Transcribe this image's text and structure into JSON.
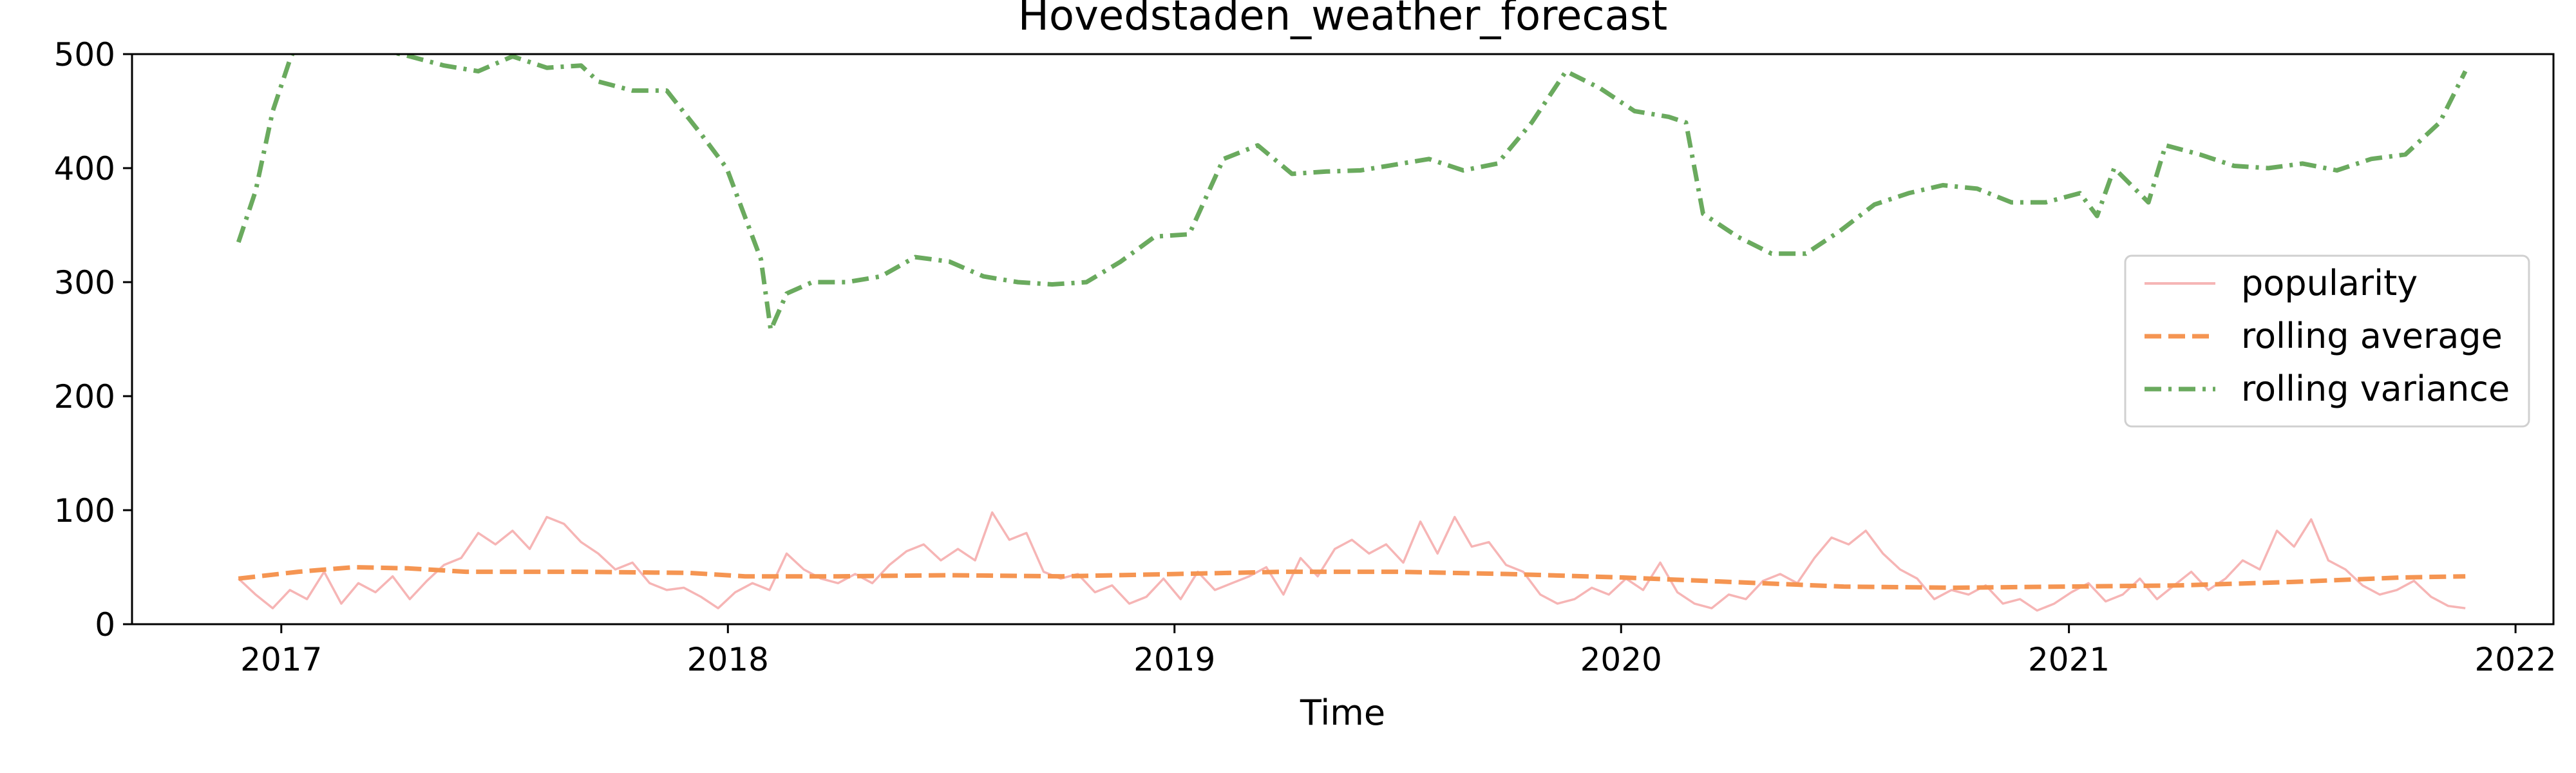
{
  "chart_data": {
    "type": "line",
    "title": "Hovedstaden_weather_forecast",
    "xlabel": "Time",
    "ylabel": "",
    "ylim": [
      0,
      500
    ],
    "xlim": [
      "2016-09-01",
      "2022-02-01"
    ],
    "x_ticks": [
      "2017",
      "2018",
      "2019",
      "2020",
      "2021",
      "2022"
    ],
    "y_ticks": [
      "0",
      "100",
      "200",
      "300",
      "400",
      "500"
    ],
    "grid": false,
    "legend_position": "center-right",
    "series": [
      {
        "name": "popularity",
        "color": "#f4a8a8",
        "style": "solid",
        "points": [
          [
            "2016-11-27",
            40
          ],
          [
            "2016-12-11",
            26
          ],
          [
            "2016-12-25",
            14
          ],
          [
            "2017-01-08",
            30
          ],
          [
            "2017-01-22",
            22
          ],
          [
            "2017-02-05",
            46
          ],
          [
            "2017-02-19",
            18
          ],
          [
            "2017-03-05",
            36
          ],
          [
            "2017-03-19",
            28
          ],
          [
            "2017-04-02",
            42
          ],
          [
            "2017-04-16",
            22
          ],
          [
            "2017-04-30",
            38
          ],
          [
            "2017-05-14",
            52
          ],
          [
            "2017-05-28",
            58
          ],
          [
            "2017-06-11",
            80
          ],
          [
            "2017-06-25",
            70
          ],
          [
            "2017-07-09",
            82
          ],
          [
            "2017-07-23",
            66
          ],
          [
            "2017-08-06",
            94
          ],
          [
            "2017-08-20",
            88
          ],
          [
            "2017-09-03",
            72
          ],
          [
            "2017-09-17",
            62
          ],
          [
            "2017-10-01",
            48
          ],
          [
            "2017-10-15",
            54
          ],
          [
            "2017-10-29",
            36
          ],
          [
            "2017-11-12",
            30
          ],
          [
            "2017-11-26",
            32
          ],
          [
            "2017-12-10",
            24
          ],
          [
            "2017-12-24",
            14
          ],
          [
            "2018-01-07",
            28
          ],
          [
            "2018-01-21",
            36
          ],
          [
            "2018-02-04",
            30
          ],
          [
            "2018-02-18",
            62
          ],
          [
            "2018-03-04",
            48
          ],
          [
            "2018-03-18",
            40
          ],
          [
            "2018-04-01",
            36
          ],
          [
            "2018-04-15",
            44
          ],
          [
            "2018-04-29",
            36
          ],
          [
            "2018-05-13",
            52
          ],
          [
            "2018-05-27",
            64
          ],
          [
            "2018-06-10",
            70
          ],
          [
            "2018-06-24",
            56
          ],
          [
            "2018-07-08",
            66
          ],
          [
            "2018-07-22",
            56
          ],
          [
            "2018-08-05",
            98
          ],
          [
            "2018-08-19",
            74
          ],
          [
            "2018-09-02",
            80
          ],
          [
            "2018-09-16",
            46
          ],
          [
            "2018-09-30",
            40
          ],
          [
            "2018-10-14",
            44
          ],
          [
            "2018-10-28",
            28
          ],
          [
            "2018-11-11",
            34
          ],
          [
            "2018-11-25",
            18
          ],
          [
            "2018-12-09",
            24
          ],
          [
            "2018-12-23",
            40
          ],
          [
            "2019-01-06",
            22
          ],
          [
            "2019-01-20",
            46
          ],
          [
            "2019-02-03",
            30
          ],
          [
            "2019-02-17",
            36
          ],
          [
            "2019-03-03",
            42
          ],
          [
            "2019-03-17",
            50
          ],
          [
            "2019-03-31",
            26
          ],
          [
            "2019-04-14",
            58
          ],
          [
            "2019-04-28",
            42
          ],
          [
            "2019-05-12",
            66
          ],
          [
            "2019-05-26",
            74
          ],
          [
            "2019-06-09",
            62
          ],
          [
            "2019-06-23",
            70
          ],
          [
            "2019-07-07",
            54
          ],
          [
            "2019-07-21",
            90
          ],
          [
            "2019-08-04",
            62
          ],
          [
            "2019-08-18",
            94
          ],
          [
            "2019-09-01",
            68
          ],
          [
            "2019-09-15",
            72
          ],
          [
            "2019-09-29",
            52
          ],
          [
            "2019-10-13",
            46
          ],
          [
            "2019-10-27",
            26
          ],
          [
            "2019-11-10",
            18
          ],
          [
            "2019-11-24",
            22
          ],
          [
            "2019-12-08",
            32
          ],
          [
            "2019-12-22",
            26
          ],
          [
            "2020-01-05",
            40
          ],
          [
            "2020-01-19",
            30
          ],
          [
            "2020-02-02",
            54
          ],
          [
            "2020-02-16",
            28
          ],
          [
            "2020-03-01",
            18
          ],
          [
            "2020-03-15",
            14
          ],
          [
            "2020-03-29",
            26
          ],
          [
            "2020-04-12",
            22
          ],
          [
            "2020-04-26",
            38
          ],
          [
            "2020-05-10",
            44
          ],
          [
            "2020-05-24",
            36
          ],
          [
            "2020-06-07",
            58
          ],
          [
            "2020-06-21",
            76
          ],
          [
            "2020-07-05",
            70
          ],
          [
            "2020-07-19",
            82
          ],
          [
            "2020-08-02",
            62
          ],
          [
            "2020-08-16",
            48
          ],
          [
            "2020-08-30",
            40
          ],
          [
            "2020-09-13",
            22
          ],
          [
            "2020-09-27",
            30
          ],
          [
            "2020-10-11",
            26
          ],
          [
            "2020-10-25",
            34
          ],
          [
            "2020-11-08",
            18
          ],
          [
            "2020-11-22",
            22
          ],
          [
            "2020-12-06",
            12
          ],
          [
            "2020-12-20",
            18
          ],
          [
            "2021-01-03",
            28
          ],
          [
            "2021-01-17",
            36
          ],
          [
            "2021-01-31",
            20
          ],
          [
            "2021-02-14",
            26
          ],
          [
            "2021-02-28",
            40
          ],
          [
            "2021-03-14",
            22
          ],
          [
            "2021-03-28",
            34
          ],
          [
            "2021-04-11",
            46
          ],
          [
            "2021-04-25",
            30
          ],
          [
            "2021-05-09",
            40
          ],
          [
            "2021-05-23",
            56
          ],
          [
            "2021-06-06",
            48
          ],
          [
            "2021-06-20",
            82
          ],
          [
            "2021-07-04",
            68
          ],
          [
            "2021-07-18",
            92
          ],
          [
            "2021-08-01",
            56
          ],
          [
            "2021-08-15",
            48
          ],
          [
            "2021-08-29",
            34
          ],
          [
            "2021-09-12",
            26
          ],
          [
            "2021-09-26",
            30
          ],
          [
            "2021-10-10",
            38
          ],
          [
            "2021-10-24",
            24
          ],
          [
            "2021-11-07",
            16
          ],
          [
            "2021-11-21",
            14
          ]
        ]
      },
      {
        "name": "rolling average",
        "color": "#f59552",
        "style": "dashed",
        "points": [
          [
            "2016-11-27",
            40
          ],
          [
            "2017-01-15",
            46
          ],
          [
            "2017-03-01",
            50
          ],
          [
            "2017-04-15",
            49
          ],
          [
            "2017-06-01",
            46
          ],
          [
            "2017-09-01",
            46
          ],
          [
            "2017-12-01",
            45
          ],
          [
            "2018-01-15",
            42
          ],
          [
            "2018-04-01",
            42
          ],
          [
            "2018-07-01",
            43
          ],
          [
            "2018-10-01",
            42
          ],
          [
            "2019-01-01",
            44
          ],
          [
            "2019-04-01",
            46
          ],
          [
            "2019-07-01",
            46
          ],
          [
            "2019-10-01",
            44
          ],
          [
            "2020-01-01",
            41
          ],
          [
            "2020-04-01",
            37
          ],
          [
            "2020-07-01",
            33
          ],
          [
            "2020-10-01",
            32
          ],
          [
            "2021-01-01",
            33
          ],
          [
            "2021-04-01",
            34
          ],
          [
            "2021-07-01",
            37
          ],
          [
            "2021-10-01",
            41
          ],
          [
            "2021-11-21",
            42
          ]
        ]
      },
      {
        "name": "rolling variance",
        "color": "#6aaa5e",
        "style": "dashdot",
        "points": [
          [
            "2016-11-27",
            335
          ],
          [
            "2016-12-11",
            380
          ],
          [
            "2016-12-25",
            450
          ],
          [
            "2017-01-08",
            495
          ],
          [
            "2017-01-22",
            530
          ],
          [
            "2017-02-19",
            525
          ],
          [
            "2017-03-19",
            505
          ],
          [
            "2017-04-16",
            498
          ],
          [
            "2017-05-14",
            490
          ],
          [
            "2017-06-11",
            485
          ],
          [
            "2017-07-09",
            498
          ],
          [
            "2017-08-06",
            488
          ],
          [
            "2017-09-03",
            490
          ],
          [
            "2017-09-17",
            476
          ],
          [
            "2017-10-15",
            468
          ],
          [
            "2017-11-12",
            468
          ],
          [
            "2017-12-10",
            430
          ],
          [
            "2017-12-31",
            400
          ],
          [
            "2018-01-14",
            360
          ],
          [
            "2018-01-28",
            320
          ],
          [
            "2018-02-05",
            258
          ],
          [
            "2018-02-18",
            290
          ],
          [
            "2018-03-11",
            300
          ],
          [
            "2018-04-08",
            300
          ],
          [
            "2018-05-06",
            305
          ],
          [
            "2018-06-03",
            322
          ],
          [
            "2018-07-01",
            318
          ],
          [
            "2018-07-29",
            305
          ],
          [
            "2018-08-26",
            300
          ],
          [
            "2018-09-23",
            298
          ],
          [
            "2018-10-21",
            300
          ],
          [
            "2018-11-18",
            318
          ],
          [
            "2018-12-16",
            340
          ],
          [
            "2019-01-13",
            342
          ],
          [
            "2019-02-10",
            408
          ],
          [
            "2019-03-10",
            420
          ],
          [
            "2019-04-07",
            395
          ],
          [
            "2019-05-05",
            397
          ],
          [
            "2019-06-02",
            398
          ],
          [
            "2019-06-30",
            403
          ],
          [
            "2019-07-28",
            408
          ],
          [
            "2019-08-25",
            398
          ],
          [
            "2019-09-22",
            404
          ],
          [
            "2019-10-20",
            440
          ],
          [
            "2019-11-17",
            485
          ],
          [
            "2019-12-15",
            470
          ],
          [
            "2020-01-12",
            450
          ],
          [
            "2020-02-09",
            445
          ],
          [
            "2020-02-23",
            440
          ],
          [
            "2020-03-08",
            360
          ],
          [
            "2020-04-05",
            340
          ],
          [
            "2020-05-03",
            325
          ],
          [
            "2020-05-31",
            325
          ],
          [
            "2020-06-28",
            345
          ],
          [
            "2020-07-26",
            368
          ],
          [
            "2020-08-23",
            378
          ],
          [
            "2020-09-20",
            385
          ],
          [
            "2020-10-18",
            382
          ],
          [
            "2020-11-15",
            370
          ],
          [
            "2020-12-13",
            370
          ],
          [
            "2021-01-10",
            378
          ],
          [
            "2021-01-24",
            358
          ],
          [
            "2021-02-07",
            400
          ],
          [
            "2021-03-07",
            370
          ],
          [
            "2021-03-21",
            420
          ],
          [
            "2021-04-18",
            412
          ],
          [
            "2021-05-16",
            402
          ],
          [
            "2021-06-13",
            400
          ],
          [
            "2021-07-11",
            404
          ],
          [
            "2021-08-08",
            398
          ],
          [
            "2021-09-05",
            408
          ],
          [
            "2021-10-03",
            412
          ],
          [
            "2021-10-31",
            440
          ],
          [
            "2021-11-21",
            485
          ]
        ]
      }
    ]
  }
}
